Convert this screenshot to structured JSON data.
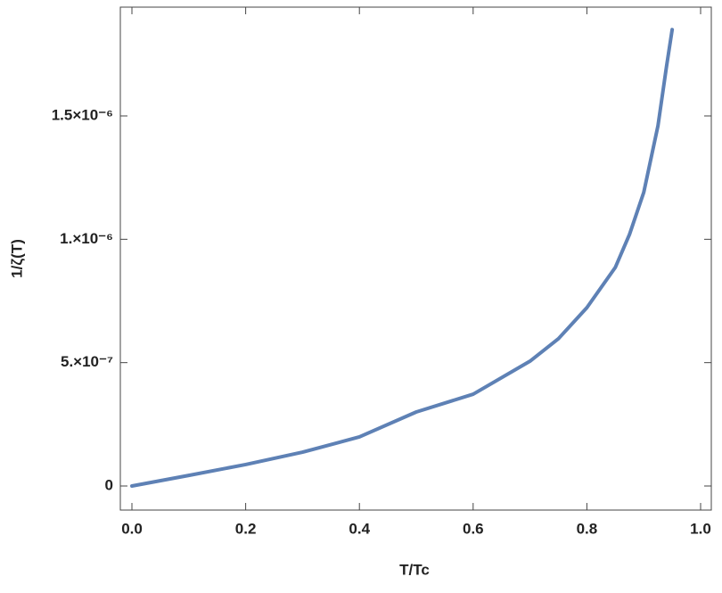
{
  "chart_data": {
    "type": "line",
    "xlabel": "T/Tc",
    "ylabel": "1/ζ(T)",
    "x": [
      0,
      0.1,
      0.2,
      0.3,
      0.4,
      0.5,
      0.6,
      0.7,
      0.75,
      0.8,
      0.85,
      0.875,
      0.9,
      0.925,
      0.94,
      0.95
    ],
    "series": [
      {
        "color": "#5e81b5",
        "values": [
          0,
          4.3e-08,
          8.7e-08,
          1.37e-07,
          1.99e-07,
          3e-07,
          3.72e-07,
          5.06e-07,
          5.97e-07,
          7.23e-07,
          8.86e-07,
          1.02e-06,
          1.19e-06,
          1.46e-06,
          1.7e-06,
          1.85e-06
        ]
      }
    ],
    "xlim": [
      -0.0204,
      1.0188
    ],
    "ylim": [
      -9.76e-08,
      1.941e-06
    ],
    "xticks": [
      {
        "value": 0,
        "label": "0.0"
      },
      0.2,
      0.4,
      0.6,
      0.8,
      {
        "value": 1,
        "label": "1.0"
      }
    ],
    "yticks": [
      0,
      {
        "value": 5e-07,
        "label": "5.×10⁻⁷"
      },
      {
        "value": 1e-06,
        "label": "1.×10⁻⁶"
      },
      {
        "value": 1.5e-06,
        "label": "1.5×10⁻⁶"
      }
    ]
  }
}
